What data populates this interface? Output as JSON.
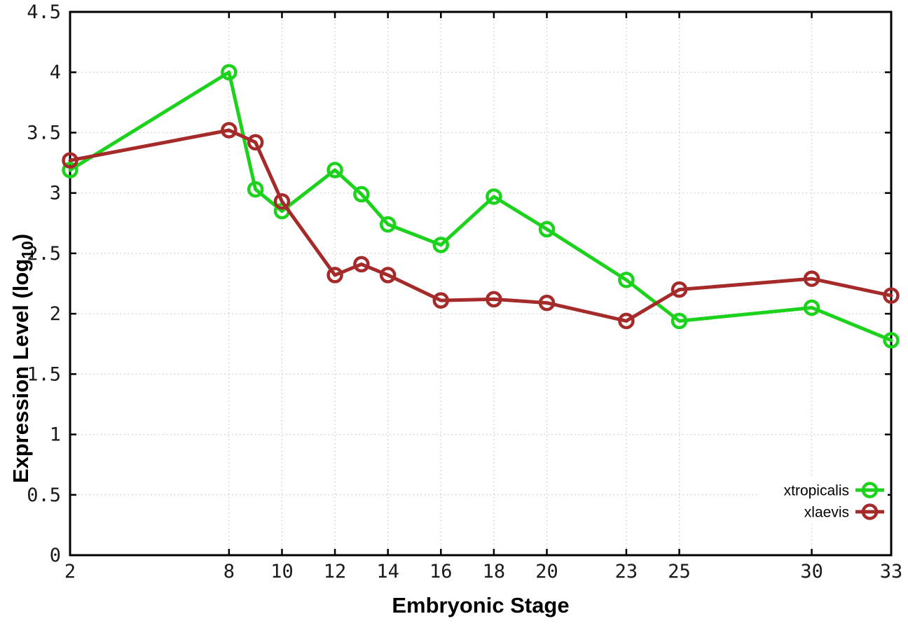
{
  "chart_data": {
    "type": "line",
    "title": "",
    "xlabel": "Embryonic Stage",
    "ylabel": {
      "pre": "Expression Level (log",
      "sub": "10",
      "post": ")"
    },
    "xlim": [
      2,
      33
    ],
    "ylim": [
      0,
      4.5
    ],
    "grid": true,
    "legend_position": "bottom-right",
    "x_ticks": [
      {
        "v": 2,
        "label": "2"
      },
      {
        "v": 8,
        "label": "8"
      },
      {
        "v": 10,
        "label": "10"
      },
      {
        "v": 12,
        "label": "12"
      },
      {
        "v": 14,
        "label": "14"
      },
      {
        "v": 16,
        "label": "16"
      },
      {
        "v": 18,
        "label": "18"
      },
      {
        "v": 20,
        "label": "20"
      },
      {
        "v": 23,
        "label": "23"
      },
      {
        "v": 25,
        "label": "25"
      },
      {
        "v": 30,
        "label": "30"
      },
      {
        "v": 33,
        "label": "33"
      }
    ],
    "y_ticks": [
      {
        "v": 0,
        "label": "0"
      },
      {
        "v": 0.5,
        "label": "0.5"
      },
      {
        "v": 1,
        "label": "1"
      },
      {
        "v": 1.5,
        "label": "1.5"
      },
      {
        "v": 2,
        "label": "2"
      },
      {
        "v": 2.5,
        "label": "2.5"
      },
      {
        "v": 3,
        "label": "3"
      },
      {
        "v": 3.5,
        "label": "3.5"
      },
      {
        "v": 4,
        "label": "4"
      },
      {
        "v": 4.5,
        "label": "4.5"
      }
    ],
    "x": [
      2,
      8,
      9,
      10,
      12,
      13,
      14,
      16,
      18,
      20,
      23,
      25,
      30,
      33
    ],
    "series": [
      {
        "name": "xtropicalis",
        "color": "#1dd21d",
        "values": [
          3.19,
          4.0,
          3.03,
          2.85,
          3.19,
          2.99,
          2.74,
          2.57,
          2.97,
          2.7,
          2.28,
          1.94,
          2.05,
          1.78
        ]
      },
      {
        "name": "xlaevis",
        "color": "#a52a2a",
        "values": [
          3.27,
          3.52,
          3.42,
          2.93,
          2.32,
          2.41,
          2.32,
          2.11,
          2.12,
          2.09,
          1.94,
          2.2,
          2.29,
          2.15
        ]
      }
    ],
    "colors": {
      "axis": "#000000",
      "grid": "#c6c6c6",
      "background": "#ffffff",
      "text": "#1a1a1a"
    }
  }
}
